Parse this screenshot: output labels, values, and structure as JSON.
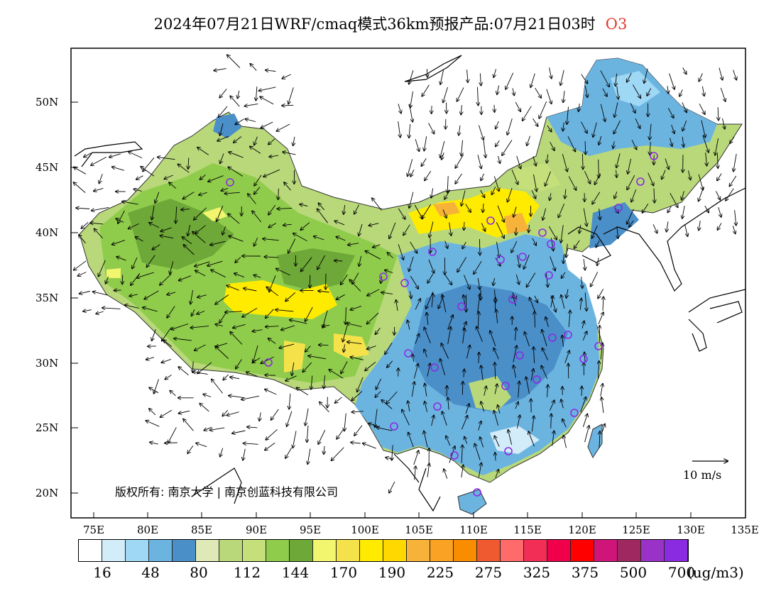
{
  "title": {
    "main": "2024年07月21日WRF/cmaq模式36km预报产品:07月21日03时",
    "species": "O3"
  },
  "lat_labels": [
    "50N",
    "45N",
    "40N",
    "35N",
    "30N",
    "25N",
    "20N"
  ],
  "lon_labels": [
    "75E",
    "80E",
    "85E",
    "90E",
    "95E",
    "100E",
    "105E",
    "110E",
    "115E",
    "120E",
    "125E",
    "130E",
    "135E"
  ],
  "copyright": "版权所有: 南京大学 | 南京创蓝科技有限公司",
  "wind_reference": "10 m/s",
  "colorbar": {
    "colors": [
      "#ffffff",
      "#d2ecfa",
      "#9fd8f5",
      "#6cb4e0",
      "#4a8fc8",
      "#dfe9b8",
      "#b8d87a",
      "#c5e07a",
      "#8fcc4c",
      "#6ea838",
      "#f2f56e",
      "#f5e24a",
      "#ffeb00",
      "#ffd800",
      "#f7b23a",
      "#f9a223",
      "#fa8c00",
      "#f05a30",
      "#ff6a6a",
      "#f22e57",
      "#f0004a",
      "#ff0000",
      "#d0157a",
      "#a02860",
      "#9a32c8",
      "#8a2be2"
    ],
    "labels": [
      "16",
      "48",
      "80",
      "112",
      "144",
      "170",
      "190",
      "225",
      "275",
      "325",
      "375",
      "500",
      "700"
    ],
    "unit": "(ug/m3)"
  }
}
